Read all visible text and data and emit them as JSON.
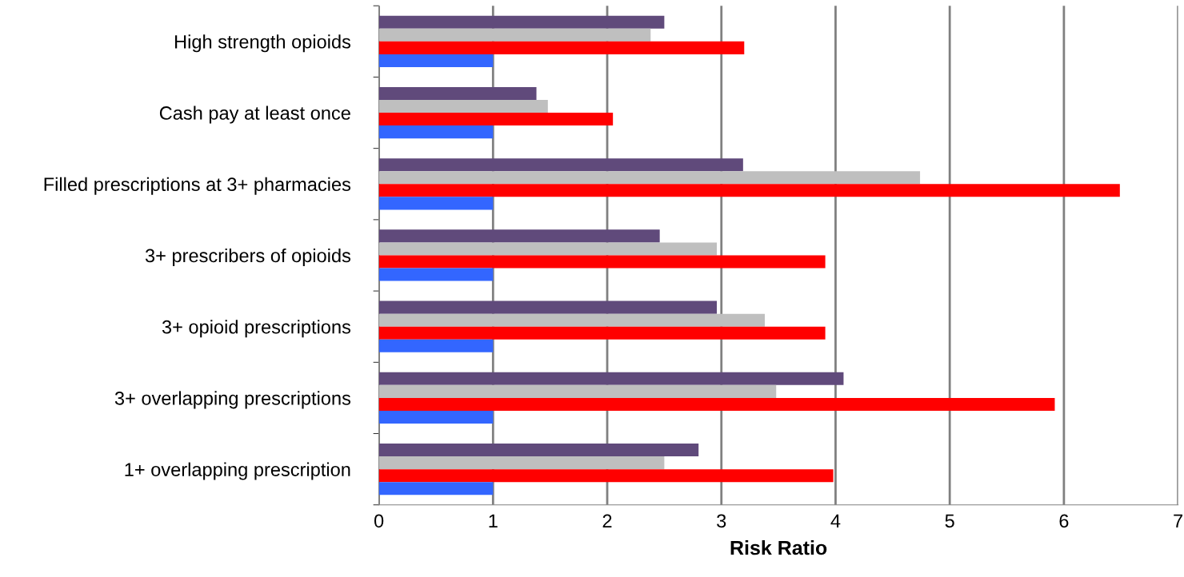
{
  "chart_data": {
    "type": "bar",
    "orientation": "horizontal",
    "xlabel": "Risk Ratio",
    "categories": [
      "High strength opioids",
      "Cash pay at least once",
      "Filled prescriptions at 3+ pharmacies",
      "3+ prescribers of opioids",
      "3+ opioid prescriptions",
      "3+ overlapping prescriptions",
      "1+ overlapping prescription"
    ],
    "series": [
      {
        "color": "#604a7b",
        "values": [
          2.5,
          1.38,
          3.19,
          2.46,
          2.96,
          4.07,
          2.8
        ]
      },
      {
        "color": "#bfbfbf",
        "values": [
          2.38,
          1.48,
          4.74,
          2.96,
          3.38,
          3.48,
          2.5
        ]
      },
      {
        "color": "#ff0000",
        "values": [
          3.2,
          2.05,
          6.49,
          3.91,
          3.91,
          5.92,
          3.98
        ]
      },
      {
        "color": "#3366ff",
        "values": [
          1.0,
          1.0,
          1.0,
          1.0,
          1.0,
          1.0,
          1.0
        ]
      }
    ],
    "xlim": [
      0,
      7
    ],
    "xticks": [
      0,
      1,
      2,
      3,
      4,
      5,
      6,
      7
    ],
    "grid": "x",
    "legend": false
  }
}
